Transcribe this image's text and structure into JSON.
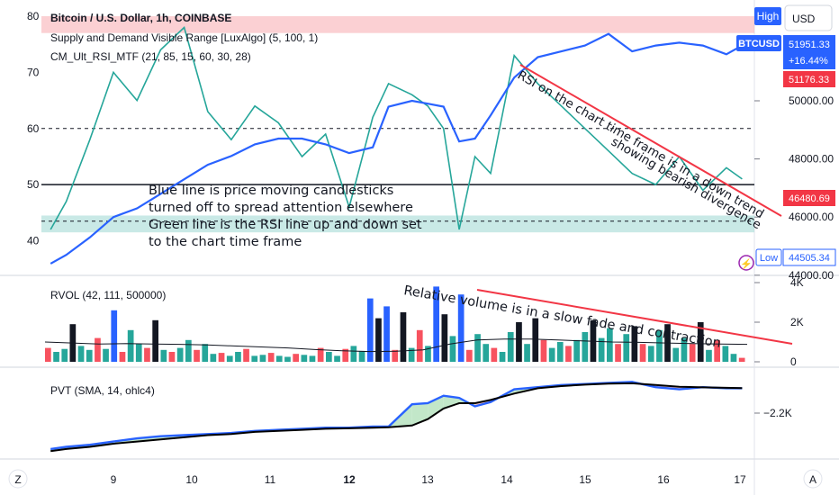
{
  "header": {
    "symbol_title": "Bitcoin / U.S. Dollar, 1h, COINBASE",
    "indicator_1": "Supply and Demand Visible Range [LuxAlgo] (5, 100, 1)",
    "indicator_2": "CM_Ult_RSI_MTF (21, 85, 15, 60, 30, 28)",
    "high_button": "High",
    "currency_button": "USD"
  },
  "price_axis": {
    "ticks": [
      "50000.00",
      "48000.00",
      "46000.00",
      "44000.00"
    ],
    "symbol_badge": "BTCUSD",
    "last_price": "51951.33",
    "change_pct": "+16.44%",
    "level_red": "51176.33",
    "level_red2": "46480.69",
    "low_label": "Low",
    "low_price": "44505.34"
  },
  "rsi_axis": {
    "ticks": [
      "80",
      "70",
      "60",
      "50",
      "40"
    ]
  },
  "rvol_panel": {
    "title": "RVOL (42, 111, 500000)",
    "ticks": [
      "4K",
      "2K",
      "0"
    ]
  },
  "pvt_panel": {
    "title": "PVT (SMA, 14, ohlc4)",
    "tick": "−2.2K"
  },
  "time_axis": {
    "ticks": [
      "9",
      "10",
      "11",
      "12",
      "13",
      "14",
      "15",
      "16",
      "17"
    ],
    "left_button": "Z",
    "right_button": "A"
  },
  "annotations": {
    "left_note": [
      "Blue line is price  moving candlesticks",
      "turned off to  spread attention elsewhere",
      "Green line is  the RSI line up and down set",
      "to the chart time frame"
    ],
    "rsi_trend_1": "RSI on the chart time frame is in a down trend",
    "rsi_trend_2": "showing bearish divergence",
    "rvol_note": "Relative volume is in a slow fade and contraction"
  },
  "colors": {
    "price_line": "#2962ff",
    "rsi_line": "#26a69a",
    "trend_line": "#f23645",
    "supply_zone": "#f7a9af",
    "demand_zone": "#b2dfdb",
    "pvt_line": "#2962ff",
    "pvt_sma": "#000000",
    "badge_blue": "#2962ff",
    "badge_red": "#f23645"
  },
  "chart_data": {
    "type": "line",
    "x_ticks": [
      "9",
      "10",
      "11",
      "12",
      "13",
      "14",
      "15",
      "16",
      "17"
    ],
    "x": [
      8.2,
      8.4,
      8.7,
      9.0,
      9.3,
      9.6,
      9.9,
      10.2,
      10.5,
      10.8,
      11.1,
      11.4,
      11.7,
      12.0,
      12.3,
      12.5,
      12.8,
      13.0,
      13.2,
      13.4,
      13.6,
      13.8,
      14.1,
      14.4,
      14.7,
      15.0,
      15.3,
      15.6,
      15.9,
      16.2,
      16.5,
      16.8,
      17.0
    ],
    "series": [
      {
        "axis": "price",
        "values": [
          44400,
          44700,
          45300,
          46000,
          46300,
          46800,
          47300,
          47800,
          48100,
          48500,
          48700,
          48700,
          48500,
          48200,
          48400,
          49800,
          50000,
          49900,
          49800,
          48600,
          48700,
          49500,
          50800,
          51500,
          51700,
          51900,
          52300,
          51700,
          51900,
          52000,
          51900,
          51600,
          51900
        ]
      },
      {
        "axis": "rsi",
        "values": [
          42,
          47,
          58,
          70,
          65,
          74,
          78,
          63,
          58,
          64,
          61,
          55,
          59,
          46,
          62,
          68,
          66,
          64,
          60,
          42,
          55,
          52,
          73,
          68,
          64,
          60,
          56,
          52,
          50,
          55,
          49,
          53,
          51
        ]
      }
    ],
    "price_ylim": [
      43400,
      52800
    ],
    "rsi_ylim": [
      38,
      80
    ],
    "rsi_levels": [
      60,
      50,
      43.5
    ],
    "rsi_zone_top": [
      80,
      77
    ],
    "rsi_zone_bottom": [
      44.5,
      41.5
    ],
    "rvol": {
      "ylim": [
        0,
        4000
      ],
      "values": [
        700,
        500,
        650,
        1900,
        800,
        600,
        1200,
        650,
        2600,
        500,
        1600,
        900,
        700,
        2100,
        600,
        500,
        700,
        1100,
        600,
        900,
        400,
        450,
        300,
        500,
        650,
        300,
        350,
        450,
        300,
        250,
        400,
        350,
        300,
        700,
        500,
        300,
        650,
        800,
        550,
        3200,
        2200,
        2800,
        600,
        2500,
        700,
        1600,
        800,
        3800,
        2400,
        1300,
        3400,
        600,
        1400,
        900,
        700,
        500,
        1500,
        2000,
        900,
        2200,
        1100,
        700,
        1000,
        800,
        1100,
        1500,
        2100,
        1200,
        1700,
        900,
        1400,
        1800,
        900,
        800,
        1600,
        1900,
        700,
        1200,
        900,
        2000,
        600,
        1100,
        800,
        400,
        200
      ],
      "average": [
        1000,
        950,
        900,
        920,
        900,
        880,
        850,
        800,
        750,
        700,
        620,
        560,
        520,
        530,
        600,
        900,
        1100,
        1150,
        1150,
        1100,
        1050,
        1000,
        980,
        950,
        920,
        900,
        880
      ]
    },
    "pvt": {
      "ylim": [
        -3600,
        200
      ],
      "values": [
        -3300,
        -3200,
        -3100,
        -2950,
        -2800,
        -2700,
        -2650,
        -2600,
        -2550,
        -2450,
        -2400,
        -2350,
        -2300,
        -2300,
        -2250,
        -2250,
        -1200,
        -1150,
        -800,
        -900,
        -1300,
        -1100,
        -500,
        -400,
        -300,
        -250,
        -200,
        -150,
        -400,
        -500,
        -400,
        -450,
        -450
      ],
      "sma": [
        -3400,
        -3300,
        -3200,
        -3050,
        -2950,
        -2850,
        -2750,
        -2650,
        -2600,
        -2500,
        -2450,
        -2400,
        -2350,
        -2330,
        -2300,
        -2280,
        -2200,
        -1900,
        -1400,
        -1150,
        -1150,
        -1000,
        -700,
        -450,
        -350,
        -280,
        -230,
        -220,
        -300,
        -380,
        -410,
        -430,
        -440
      ],
      "tick": "−2.2K"
    }
  }
}
